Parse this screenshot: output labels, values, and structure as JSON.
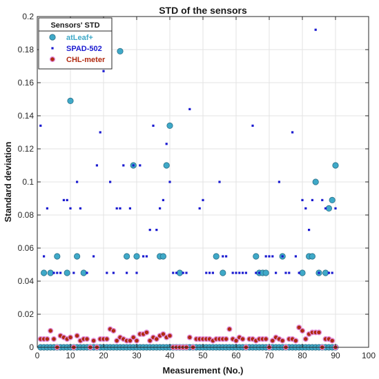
{
  "chart_data": {
    "type": "scatter",
    "title": "STD of the sensors",
    "xlabel": "Measurement (No.)",
    "ylabel": "Standard deviation",
    "xlim": [
      0,
      100
    ],
    "ylim": [
      0,
      0.2
    ],
    "x_ticks": [
      0,
      10,
      20,
      30,
      40,
      50,
      60,
      70,
      80,
      90,
      100
    ],
    "y_ticks": [
      0,
      0.02,
      0.04,
      0.06,
      0.08,
      0.1,
      0.12,
      0.14,
      0.16,
      0.18,
      0.2
    ],
    "x_tick_labels": [
      "0",
      "10",
      "20",
      "30",
      "40",
      "50",
      "60",
      "70",
      "80",
      "90",
      "100"
    ],
    "y_tick_labels": [
      "0",
      "0.02",
      "0.04",
      "0.06",
      "0.08",
      "0.1",
      "0.12",
      "0.14",
      "0.16",
      "0.18",
      "0.2"
    ],
    "grid": true,
    "legend": {
      "title": "Sensors' STD",
      "position": "top-left"
    },
    "series": [
      {
        "name": "atLeaf+",
        "color": "#3fa9c8",
        "points": [
          [
            2,
            0.045
          ],
          [
            4,
            0.045
          ],
          [
            6,
            0.055
          ],
          [
            9,
            0.045
          ],
          [
            10,
            0.149
          ],
          [
            12,
            0.055
          ],
          [
            14,
            0.045
          ],
          [
            25,
            0.179
          ],
          [
            27,
            0.055
          ],
          [
            29,
            0.11
          ],
          [
            30,
            0.055
          ],
          [
            37,
            0.055
          ],
          [
            38,
            0.055
          ],
          [
            39,
            0.11
          ],
          [
            40,
            0.134
          ],
          [
            43,
            0.045
          ],
          [
            54,
            0.055
          ],
          [
            56,
            0.045
          ],
          [
            66,
            0.055
          ],
          [
            67,
            0.045
          ],
          [
            68,
            0.045
          ],
          [
            69,
            0.045
          ],
          [
            74,
            0.055
          ],
          [
            80,
            0.045
          ],
          [
            82,
            0.055
          ],
          [
            83,
            0.055
          ],
          [
            84,
            0.1
          ],
          [
            85,
            0.045
          ],
          [
            87,
            0.045
          ],
          [
            88,
            0.084
          ],
          [
            89,
            0.089
          ],
          [
            90,
            0.11
          ],
          [
            1,
            0
          ],
          [
            2,
            0
          ],
          [
            3,
            0
          ],
          [
            4,
            0
          ],
          [
            5,
            0
          ],
          [
            6,
            0
          ],
          [
            7,
            0
          ],
          [
            8,
            0
          ],
          [
            9,
            0
          ],
          [
            10,
            0
          ],
          [
            11,
            0
          ],
          [
            12,
            0
          ],
          [
            13,
            0
          ],
          [
            14,
            0
          ],
          [
            15,
            0
          ],
          [
            16,
            0
          ],
          [
            17,
            0
          ],
          [
            18,
            0
          ],
          [
            19,
            0
          ],
          [
            20,
            0
          ],
          [
            21,
            0
          ],
          [
            22,
            0
          ],
          [
            23,
            0
          ],
          [
            24,
            0
          ],
          [
            25,
            0
          ],
          [
            26,
            0
          ],
          [
            27,
            0
          ],
          [
            28,
            0
          ],
          [
            29,
            0
          ],
          [
            30,
            0
          ],
          [
            31,
            0
          ],
          [
            32,
            0
          ],
          [
            33,
            0
          ],
          [
            34,
            0
          ],
          [
            35,
            0
          ],
          [
            36,
            0
          ],
          [
            37,
            0
          ],
          [
            38,
            0
          ],
          [
            39,
            0
          ],
          [
            40,
            0
          ],
          [
            41,
            0
          ],
          [
            42,
            0
          ],
          [
            43,
            0
          ],
          [
            44,
            0
          ],
          [
            45,
            0
          ],
          [
            46,
            0
          ],
          [
            47,
            0
          ],
          [
            48,
            0
          ],
          [
            49,
            0
          ],
          [
            50,
            0
          ],
          [
            51,
            0
          ],
          [
            52,
            0
          ],
          [
            53,
            0
          ],
          [
            54,
            0
          ],
          [
            55,
            0
          ],
          [
            56,
            0
          ],
          [
            57,
            0
          ],
          [
            58,
            0
          ],
          [
            59,
            0
          ],
          [
            60,
            0
          ],
          [
            61,
            0
          ],
          [
            62,
            0
          ],
          [
            63,
            0
          ],
          [
            64,
            0
          ],
          [
            65,
            0
          ],
          [
            66,
            0
          ],
          [
            67,
            0
          ],
          [
            68,
            0
          ],
          [
            69,
            0
          ],
          [
            70,
            0
          ],
          [
            71,
            0
          ],
          [
            72,
            0
          ],
          [
            73,
            0
          ],
          [
            74,
            0
          ],
          [
            75,
            0
          ],
          [
            76,
            0
          ],
          [
            77,
            0
          ],
          [
            78,
            0
          ],
          [
            79,
            0
          ],
          [
            80,
            0
          ],
          [
            81,
            0
          ],
          [
            82,
            0
          ],
          [
            83,
            0
          ],
          [
            84,
            0
          ],
          [
            85,
            0
          ],
          [
            86,
            0
          ],
          [
            87,
            0
          ],
          [
            88,
            0
          ],
          [
            89,
            0
          ],
          [
            90,
            0
          ]
        ]
      },
      {
        "name": "SPAD-502",
        "color": "#1a1ad0",
        "points": [
          [
            1,
            0.134
          ],
          [
            2,
            0.055
          ],
          [
            3,
            0.084
          ],
          [
            5,
            0.045
          ],
          [
            6,
            0.045
          ],
          [
            7,
            0.045
          ],
          [
            8,
            0.089
          ],
          [
            9,
            0.089
          ],
          [
            10,
            0.084
          ],
          [
            11,
            0.045
          ],
          [
            12,
            0.1
          ],
          [
            13,
            0.084
          ],
          [
            15,
            0.045
          ],
          [
            17,
            0.055
          ],
          [
            18,
            0.11
          ],
          [
            19,
            0.13
          ],
          [
            20,
            0.167
          ],
          [
            21,
            0.045
          ],
          [
            22,
            0.1
          ],
          [
            23,
            0.045
          ],
          [
            24,
            0.084
          ],
          [
            25,
            0.084
          ],
          [
            26,
            0.11
          ],
          [
            27,
            0.045
          ],
          [
            28,
            0.084
          ],
          [
            29,
            0.11
          ],
          [
            30,
            0.045
          ],
          [
            31,
            0.11
          ],
          [
            32,
            0.055
          ],
          [
            33,
            0.055
          ],
          [
            34,
            0.071
          ],
          [
            35,
            0.134
          ],
          [
            36,
            0.071
          ],
          [
            37,
            0.084
          ],
          [
            38,
            0.089
          ],
          [
            39,
            0.123
          ],
          [
            40,
            0.1
          ],
          [
            41,
            0.045
          ],
          [
            42,
            0.045
          ],
          [
            44,
            0.045
          ],
          [
            45,
            0.045
          ],
          [
            46,
            0.144
          ],
          [
            49,
            0.084
          ],
          [
            50,
            0.089
          ],
          [
            51,
            0.045
          ],
          [
            52,
            0.045
          ],
          [
            53,
            0.045
          ],
          [
            55,
            0.1
          ],
          [
            56,
            0.055
          ],
          [
            57,
            0.055
          ],
          [
            59,
            0.045
          ],
          [
            60,
            0.045
          ],
          [
            61,
            0.045
          ],
          [
            62,
            0.045
          ],
          [
            63,
            0.045
          ],
          [
            65,
            0.134
          ],
          [
            66,
            0.045
          ],
          [
            67,
            0.045
          ],
          [
            69,
            0.055
          ],
          [
            70,
            0.055
          ],
          [
            71,
            0.055
          ],
          [
            72,
            0.045
          ],
          [
            73,
            0.1
          ],
          [
            74,
            0.055
          ],
          [
            75,
            0.045
          ],
          [
            76,
            0.045
          ],
          [
            77,
            0.13
          ],
          [
            78,
            0.055
          ],
          [
            79,
            0.045
          ],
          [
            80,
            0.089
          ],
          [
            81,
            0.084
          ],
          [
            82,
            0.071
          ],
          [
            83,
            0.089
          ],
          [
            84,
            0.192
          ],
          [
            85,
            0.045
          ],
          [
            86,
            0.089
          ],
          [
            87,
            0.084
          ],
          [
            88,
            0.045
          ],
          [
            89,
            0.045
          ],
          [
            90,
            0.084
          ]
        ]
      },
      {
        "name": "CHL-meter",
        "color": "#b02a10",
        "points": [
          [
            1,
            0.005
          ],
          [
            2,
            0.005
          ],
          [
            3,
            0.005
          ],
          [
            4,
            0.01
          ],
          [
            5,
            0.005
          ],
          [
            6,
            0.0
          ],
          [
            7,
            0.007
          ],
          [
            8,
            0.006
          ],
          [
            9,
            0.005
          ],
          [
            10,
            0.006
          ],
          [
            11,
            0.0
          ],
          [
            12,
            0.007
          ],
          [
            13,
            0.004
          ],
          [
            14,
            0.005
          ],
          [
            15,
            0.005
          ],
          [
            16,
            0.0
          ],
          [
            17,
            0.004
          ],
          [
            18,
            0.0
          ],
          [
            19,
            0.005
          ],
          [
            20,
            0.005
          ],
          [
            21,
            0.005
          ],
          [
            22,
            0.011
          ],
          [
            23,
            0.01
          ],
          [
            24,
            0.004
          ],
          [
            25,
            0.006
          ],
          [
            26,
            0.005
          ],
          [
            27,
            0.004
          ],
          [
            28,
            0.004
          ],
          [
            29,
            0.006
          ],
          [
            30,
            0.004
          ],
          [
            31,
            0.008
          ],
          [
            32,
            0.008
          ],
          [
            33,
            0.009
          ],
          [
            34,
            0.004
          ],
          [
            35,
            0.006
          ],
          [
            36,
            0.005
          ],
          [
            37,
            0.007
          ],
          [
            38,
            0.008
          ],
          [
            39,
            0.006
          ],
          [
            40,
            0.007
          ],
          [
            41,
            0.0
          ],
          [
            42,
            0.0
          ],
          [
            43,
            0.0
          ],
          [
            44,
            0.0
          ],
          [
            45,
            0.0
          ],
          [
            46,
            0.006
          ],
          [
            47,
            0.0
          ],
          [
            48,
            0.005
          ],
          [
            49,
            0.005
          ],
          [
            50,
            0.005
          ],
          [
            51,
            0.005
          ],
          [
            52,
            0.005
          ],
          [
            53,
            0.004
          ],
          [
            54,
            0.005
          ],
          [
            55,
            0.005
          ],
          [
            56,
            0.005
          ],
          [
            57,
            0.005
          ],
          [
            58,
            0.011
          ],
          [
            59,
            0.005
          ],
          [
            60,
            0.004
          ],
          [
            61,
            0.006
          ],
          [
            62,
            0.005
          ],
          [
            63,
            0.0
          ],
          [
            64,
            0.005
          ],
          [
            65,
            0.005
          ],
          [
            66,
            0.004
          ],
          [
            67,
            0.005
          ],
          [
            68,
            0.005
          ],
          [
            69,
            0.005
          ],
          [
            70,
            0.0
          ],
          [
            71,
            0.004
          ],
          [
            72,
            0.006
          ],
          [
            73,
            0.005
          ],
          [
            74,
            0.004
          ],
          [
            75,
            0.0
          ],
          [
            76,
            0.005
          ],
          [
            77,
            0.005
          ],
          [
            78,
            0.004
          ],
          [
            79,
            0.012
          ],
          [
            80,
            0.01
          ],
          [
            81,
            0.005
          ],
          [
            82,
            0.008
          ],
          [
            83,
            0.009
          ],
          [
            84,
            0.009
          ],
          [
            85,
            0.009
          ],
          [
            86,
            0.0
          ],
          [
            87,
            0.005
          ],
          [
            88,
            0.005
          ],
          [
            89,
            0.004
          ],
          [
            90,
            0.0
          ]
        ]
      }
    ]
  }
}
